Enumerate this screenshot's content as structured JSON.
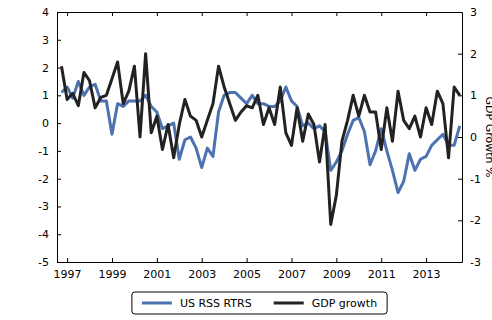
{
  "chart_data": {
    "type": "line",
    "y2label": "GDP Growth %",
    "x": [
      1996.75,
      1997.0,
      1997.25,
      1997.5,
      1997.75,
      1998.0,
      1998.25,
      1998.5,
      1998.75,
      1999.0,
      1999.25,
      1999.5,
      1999.75,
      2000.0,
      2000.25,
      2000.5,
      2000.75,
      2001.0,
      2001.25,
      2001.5,
      2001.75,
      2002.0,
      2002.25,
      2002.5,
      2002.75,
      2003.0,
      2003.25,
      2003.5,
      2003.75,
      2004.0,
      2004.25,
      2004.5,
      2004.75,
      2005.0,
      2005.25,
      2005.5,
      2005.75,
      2006.0,
      2006.25,
      2006.5,
      2006.75,
      2007.0,
      2007.25,
      2007.5,
      2007.75,
      2008.0,
      2008.25,
      2008.5,
      2008.75,
      2009.0,
      2009.25,
      2009.5,
      2009.75,
      2010.0,
      2010.25,
      2010.5,
      2010.75,
      2011.0,
      2011.25,
      2011.5,
      2011.75,
      2012.0,
      2012.25,
      2012.5,
      2012.75,
      2013.0,
      2013.25,
      2013.5,
      2013.75,
      2014.0,
      2014.25,
      2014.5
    ],
    "series": [
      {
        "name": "US RSS RTRS",
        "color": "#4c72b0",
        "values": [
          1.1,
          1.3,
          0.9,
          1.5,
          1.0,
          1.3,
          1.4,
          0.8,
          0.8,
          -0.4,
          0.7,
          0.6,
          0.8,
          0.8,
          0.8,
          1.0,
          0.6,
          0.4,
          -0.2,
          -0.1,
          0.0,
          -1.3,
          -0.6,
          -0.5,
          -0.9,
          -1.6,
          -0.9,
          -1.2,
          0.4,
          1.0,
          1.1,
          1.1,
          0.9,
          0.7,
          1.0,
          0.7,
          0.7,
          0.6,
          0.6,
          0.8,
          1.3,
          0.8,
          0.6,
          -0.1,
          0.0,
          -0.2,
          -0.1,
          -0.3,
          -1.7,
          -1.4,
          -1.0,
          -0.4,
          0.1,
          0.2,
          -0.3,
          -1.5,
          -1.0,
          -0.2,
          -1.0,
          -1.7,
          -2.5,
          -2.1,
          -1.1,
          -1.7,
          -1.3,
          -1.2,
          -0.8,
          -0.6,
          -0.4,
          -0.8,
          -0.8,
          -0.1
        ]
      },
      {
        "name": "GDP growth",
        "color": "#222222",
        "axis": "y2",
        "values": [
          1.7,
          0.9,
          1.05,
          0.75,
          1.55,
          1.35,
          0.7,
          0.95,
          1.0,
          1.4,
          1.8,
          0.8,
          1.1,
          1.7,
          0.0,
          2.0,
          0.1,
          0.5,
          -0.3,
          0.3,
          -0.5,
          0.3,
          0.9,
          0.5,
          0.4,
          0.0,
          0.4,
          0.8,
          1.7,
          1.2,
          0.8,
          0.4,
          0.6,
          0.75,
          0.7,
          1.0,
          0.3,
          0.7,
          0.3,
          1.2,
          0.1,
          -0.2,
          0.7,
          -0.1,
          0.55,
          0.3,
          -0.6,
          0.3,
          -2.1,
          -1.4,
          -0.1,
          0.4,
          1.0,
          0.5,
          1.0,
          0.6,
          0.6,
          -0.3,
          0.7,
          -0.1,
          1.1,
          0.4,
          0.2,
          0.5,
          0.0,
          0.7,
          0.3,
          1.1,
          0.8,
          -0.5,
          1.2,
          1.0
        ]
      }
    ],
    "xlim": [
      1996.55,
      2014.6
    ],
    "xticks": [
      1997,
      1999,
      2001,
      2003,
      2005,
      2007,
      2009,
      2011,
      2013
    ],
    "ylim": [
      -5,
      4
    ],
    "yticks": [
      -5,
      -4,
      -3,
      -2,
      -1,
      0,
      1,
      2,
      3,
      4
    ],
    "y2lim": [
      -3,
      3
    ],
    "y2ticks": [
      -3,
      -2,
      -1,
      0,
      1,
      2,
      3
    ],
    "legend": "bottom",
    "grid": false
  }
}
